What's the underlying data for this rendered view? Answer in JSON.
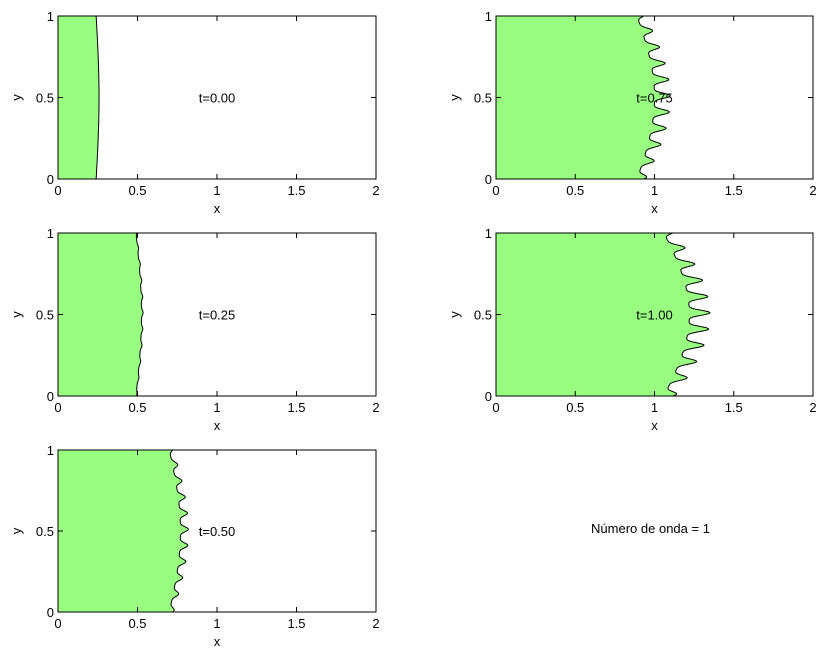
{
  "chart_data": [
    {
      "type": "area",
      "annotation": "t=0.00",
      "xlabel": "x",
      "ylabel": "y",
      "xlim": [
        0,
        2
      ],
      "ylim": [
        0,
        1
      ],
      "xticks": [
        "0",
        "0.5",
        "1",
        "1.5",
        "2"
      ],
      "yticks": [
        "0",
        "0.5",
        "1"
      ],
      "front": {
        "base_x": 0.24,
        "amplitude": 0.018,
        "fingers": 0,
        "finger_length": 0
      }
    },
    {
      "type": "area",
      "annotation": "t=0.25",
      "xlabel": "x",
      "ylabel": "y",
      "xlim": [
        0,
        2
      ],
      "ylim": [
        0,
        1
      ],
      "xticks": [
        "0",
        "0.5",
        "1",
        "1.5",
        "2"
      ],
      "yticks": [
        "0",
        "0.5",
        "1"
      ],
      "front": {
        "base_x": 0.49,
        "amplitude": 0.035,
        "fingers": 10,
        "finger_length": 0.01
      }
    },
    {
      "type": "area",
      "annotation": "t=0.50",
      "xlabel": "x",
      "ylabel": "y",
      "xlim": [
        0,
        2
      ],
      "ylim": [
        0,
        1
      ],
      "xticks": [
        "0",
        "0.5",
        "1",
        "1.5",
        "2"
      ],
      "yticks": [
        "0",
        "0.5",
        "1"
      ],
      "front": {
        "base_x": 0.7,
        "amplitude": 0.07,
        "fingers": 10,
        "finger_length": 0.05
      }
    },
    {
      "type": "area",
      "annotation": "t=0.75",
      "xlabel": "x",
      "ylabel": "y",
      "xlim": [
        0,
        2
      ],
      "ylim": [
        0,
        1
      ],
      "xticks": [
        "0",
        "0.5",
        "1",
        "1.5",
        "2"
      ],
      "yticks": [
        "0",
        "0.5",
        "1"
      ],
      "front": {
        "base_x": 0.89,
        "amplitude": 0.11,
        "fingers": 10,
        "finger_length": 0.1
      }
    },
    {
      "type": "area",
      "annotation": "t=1.00",
      "xlabel": "x",
      "ylabel": "y",
      "xlim": [
        0,
        2
      ],
      "ylim": [
        0,
        1
      ],
      "xticks": [
        "0",
        "0.5",
        "1",
        "1.5",
        "2"
      ],
      "yticks": [
        "0",
        "0.5",
        "1"
      ],
      "front": {
        "base_x": 1.06,
        "amplitude": 0.16,
        "fingers": 10,
        "finger_length": 0.13
      }
    }
  ],
  "note": "Número de onda = 1",
  "colors": {
    "fill": "#99ff80",
    "line": "#000000"
  }
}
